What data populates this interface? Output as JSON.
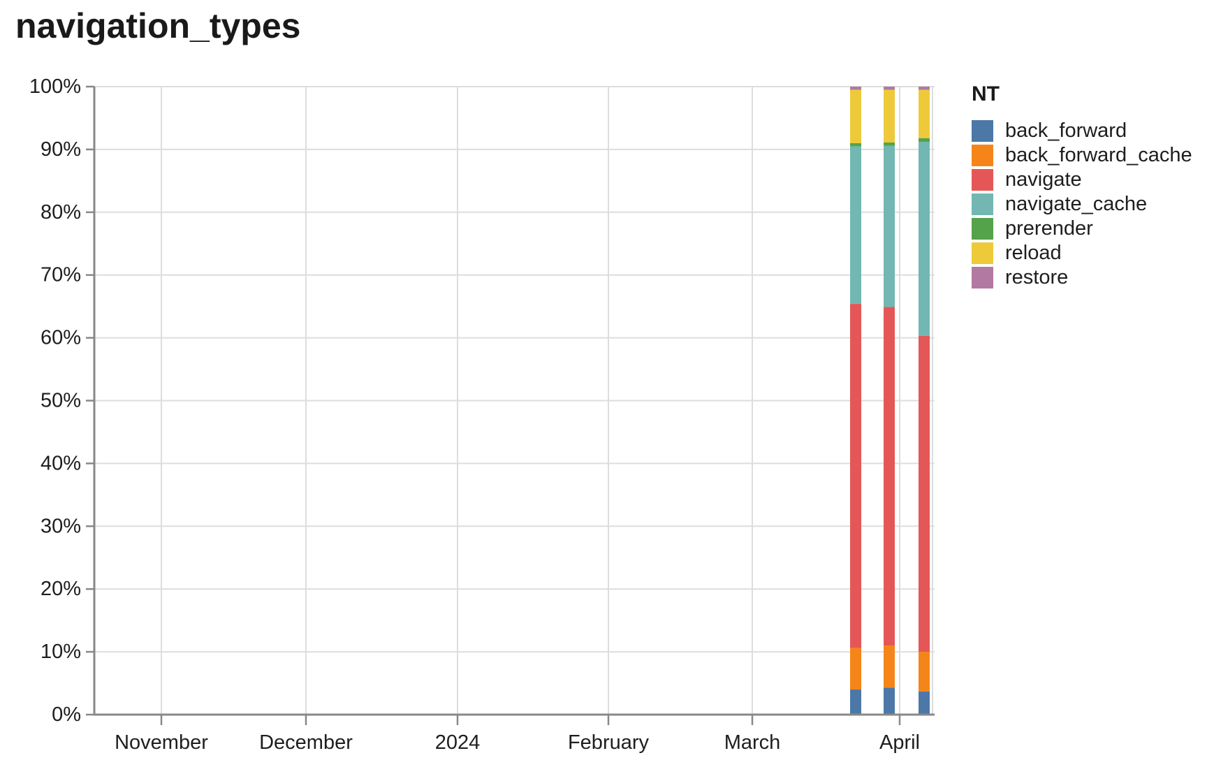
{
  "title": "navigation_types",
  "chart_data": {
    "type": "bar",
    "stacked": true,
    "normalized": true,
    "title": "navigation_types",
    "legend_title": "NT",
    "legend_position": "right",
    "grid": true,
    "ylabel": "",
    "xlabel": "",
    "ylim": [
      0,
      100
    ],
    "y_tick_labels": [
      "0%",
      "10%",
      "20%",
      "30%",
      "40%",
      "50%",
      "60%",
      "70%",
      "80%",
      "90%",
      "100%"
    ],
    "x_tick_labels": [
      "November",
      "December",
      "2024",
      "February",
      "March",
      "April"
    ],
    "x_bar_positions_estimate": [
      "~Mar 23, 2024",
      "~Mar 30, 2024",
      "~Apr 6, 2024"
    ],
    "series": [
      {
        "name": "back_forward",
        "color": "#4c78a8",
        "values": [
          4.0,
          4.3,
          3.7
        ]
      },
      {
        "name": "back_forward_cache",
        "color": "#f58518",
        "values": [
          6.6,
          6.7,
          6.3
        ]
      },
      {
        "name": "navigate",
        "color": "#e45756",
        "values": [
          54.8,
          53.9,
          50.3
        ]
      },
      {
        "name": "navigate_cache",
        "color": "#72b7b2",
        "values": [
          25.1,
          25.7,
          30.9
        ]
      },
      {
        "name": "prerender",
        "color": "#54a24b",
        "values": [
          0.5,
          0.5,
          0.6
        ]
      },
      {
        "name": "reload",
        "color": "#eeca3b",
        "values": [
          8.5,
          8.4,
          7.7
        ]
      },
      {
        "name": "restore",
        "color": "#b279a2",
        "values": [
          0.5,
          0.5,
          0.5
        ]
      }
    ],
    "colors": {
      "gridline": "#dddddd",
      "axis": "#888888",
      "label": "#1e1e1e",
      "title": "#1a1a1a"
    }
  }
}
